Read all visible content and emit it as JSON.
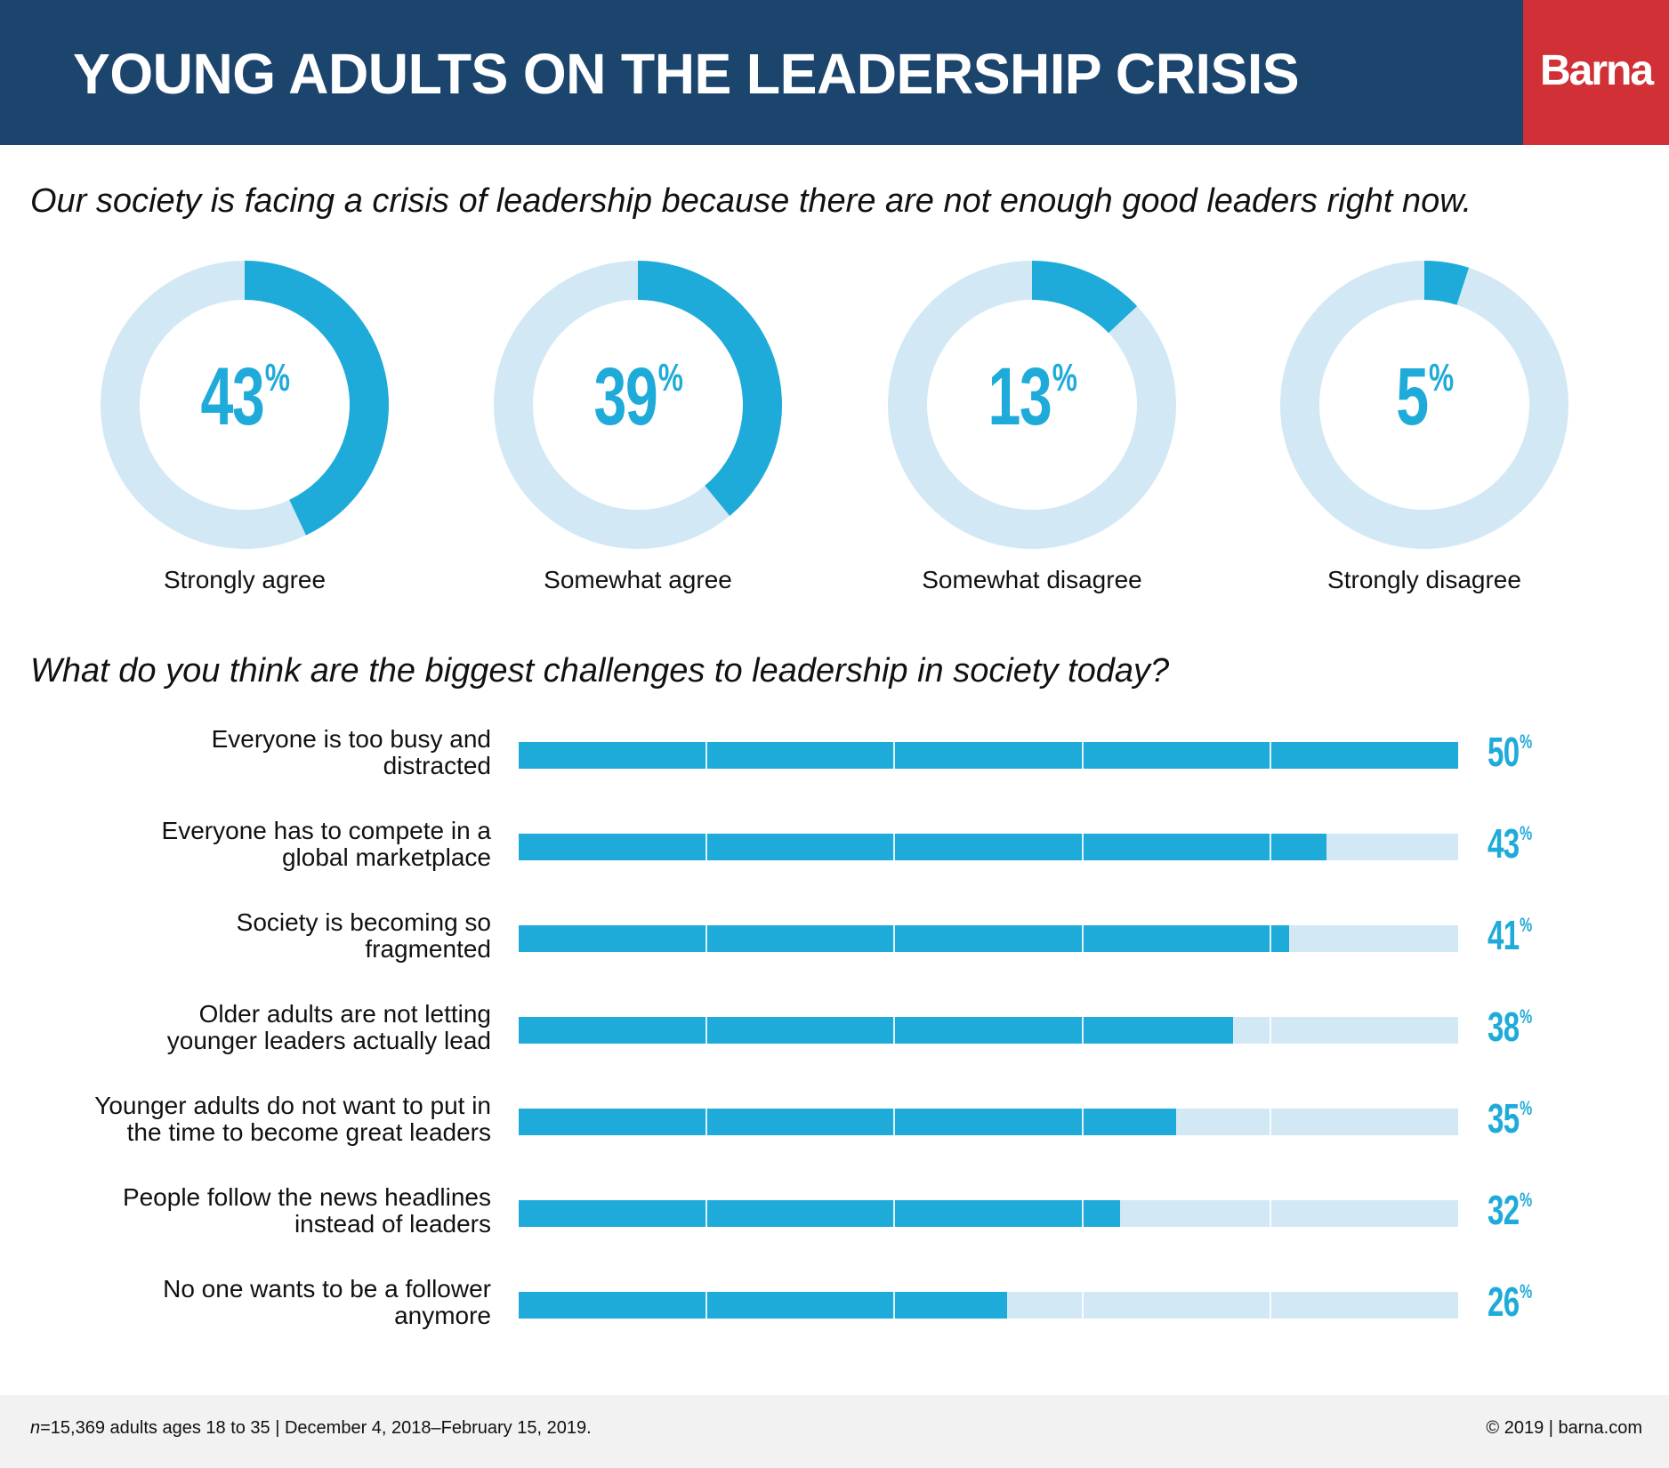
{
  "header": {
    "title": "YOUNG ADULTS ON THE LEADERSHIP CRISIS",
    "brand": "Barna"
  },
  "colors": {
    "header_bg": "#1c456e",
    "brand_bg": "#d03036",
    "accent": "#1fabd9",
    "track": "#d3e8f5",
    "footer_bg": "#f2f2f2"
  },
  "section1": {
    "question": "Our society is facing a crisis of leadership because there are not enough good leaders right now."
  },
  "section2": {
    "question": "What do you think are the biggest challenges to leadership in society today?"
  },
  "footer": {
    "sample_prefix": "n",
    "sample_text": "=15,369 adults ages 18 to 35 | December 4, 2018–February 15, 2019.",
    "copyright": "© 2019 | barna.com"
  },
  "chart_data": [
    {
      "type": "pie",
      "subtype": "donut",
      "title": "Our society is facing a crisis of leadership because there are not enough good leaders right now.",
      "categories": [
        "Strongly agree",
        "Somewhat agree",
        "Somewhat disagree",
        "Strongly disagree"
      ],
      "values": [
        43,
        39,
        13,
        5
      ],
      "value_labels": [
        "43",
        "39",
        "13",
        "5"
      ],
      "unit": "%",
      "max": 100
    },
    {
      "type": "bar",
      "orientation": "horizontal",
      "title": "What do you think are the biggest challenges to leadership in society today?",
      "categories": [
        [
          "Everyone is too busy and",
          "distracted"
        ],
        [
          "Everyone has to compete in a",
          "global marketplace"
        ],
        [
          "Society is becoming so",
          "fragmented"
        ],
        [
          "Older adults are not letting",
          "younger leaders actually lead"
        ],
        [
          "Younger adults do not want to put in",
          "the time to become great leaders"
        ],
        [
          "People follow the news headlines",
          "instead of leaders"
        ],
        [
          "No one wants to be a follower",
          "anymore"
        ]
      ],
      "values": [
        50,
        43,
        41,
        38,
        35,
        32,
        26
      ],
      "value_labels": [
        "50",
        "43",
        "41",
        "38",
        "35",
        "32",
        "26"
      ],
      "unit": "%",
      "xlim": [
        0,
        50
      ],
      "grid_intervals": 5,
      "grid": true
    }
  ]
}
